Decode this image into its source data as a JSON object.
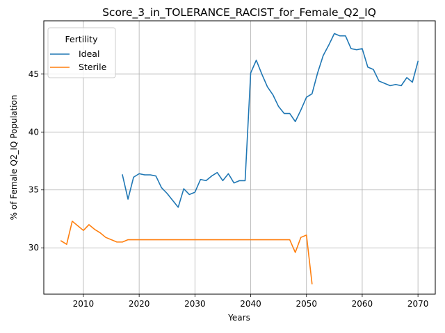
{
  "chart_data": {
    "type": "line",
    "title": "Score_3_in_TOLERANCE_RACIST_for_Female_Q2_IQ",
    "xlabel": "Years",
    "ylabel": "% of Female Q2_IQ Population",
    "xlim": [
      2002.9,
      2073.1
    ],
    "ylim": [
      26.0,
      49.6
    ],
    "x_ticks": [
      2010,
      2020,
      2030,
      2040,
      2050,
      2060,
      2070
    ],
    "y_ticks": [
      30,
      35,
      40,
      45
    ],
    "grid": true,
    "legend": {
      "title": "Fertility",
      "placement": "top-left"
    },
    "series": [
      {
        "name": "Ideal",
        "color": "#1f77b4",
        "x": [
          2017,
          2018,
          2019,
          2020,
          2021,
          2022,
          2023,
          2024,
          2025,
          2026,
          2027,
          2028,
          2029,
          2030,
          2031,
          2032,
          2033,
          2034,
          2035,
          2036,
          2037,
          2038,
          2039,
          2040,
          2041,
          2042,
          2043,
          2044,
          2045,
          2046,
          2047,
          2048,
          2049,
          2050,
          2051,
          2052,
          2053,
          2054,
          2055,
          2056,
          2057,
          2058,
          2059,
          2060,
          2061,
          2062,
          2063,
          2064,
          2065,
          2066,
          2067,
          2068,
          2069,
          2070
        ],
        "values": [
          36.3,
          34.2,
          36.1,
          36.4,
          36.3,
          36.3,
          36.2,
          35.2,
          34.7,
          34.1,
          33.5,
          35.1,
          34.6,
          34.8,
          35.9,
          35.8,
          36.2,
          36.5,
          35.8,
          36.4,
          35.6,
          35.8,
          35.8,
          45.1,
          46.2,
          45.0,
          43.9,
          43.2,
          42.2,
          41.6,
          41.6,
          40.9,
          41.9,
          43.0,
          43.3,
          45.1,
          46.6,
          47.5,
          48.5,
          48.3,
          48.3,
          47.2,
          47.1,
          47.2,
          45.6,
          45.4,
          44.4,
          44.2,
          44.0,
          44.1,
          44.0,
          44.7,
          44.3,
          46.1
        ]
      },
      {
        "name": "Sterile",
        "color": "#ff7f0e",
        "x": [
          2006,
          2007,
          2008,
          2009,
          2010,
          2011,
          2012,
          2013,
          2014,
          2015,
          2016,
          2017,
          2018,
          2019,
          2020,
          2021,
          2022,
          2023,
          2024,
          2025,
          2026,
          2027,
          2028,
          2029,
          2030,
          2031,
          2032,
          2033,
          2034,
          2035,
          2036,
          2037,
          2038,
          2039,
          2040,
          2041,
          2042,
          2043,
          2044,
          2045,
          2046,
          2047,
          2048,
          2049,
          2050,
          2051
        ],
        "values": [
          30.6,
          30.3,
          32.3,
          31.9,
          31.5,
          32.0,
          31.6,
          31.3,
          30.9,
          30.7,
          30.5,
          30.5,
          30.7,
          30.7,
          30.7,
          30.7,
          30.7,
          30.7,
          30.7,
          30.7,
          30.7,
          30.7,
          30.7,
          30.7,
          30.7,
          30.7,
          30.7,
          30.7,
          30.7,
          30.7,
          30.7,
          30.7,
          30.7,
          30.7,
          30.7,
          30.7,
          30.7,
          30.7,
          30.7,
          30.7,
          30.7,
          30.7,
          29.6,
          30.9,
          31.1,
          26.9
        ]
      }
    ]
  }
}
